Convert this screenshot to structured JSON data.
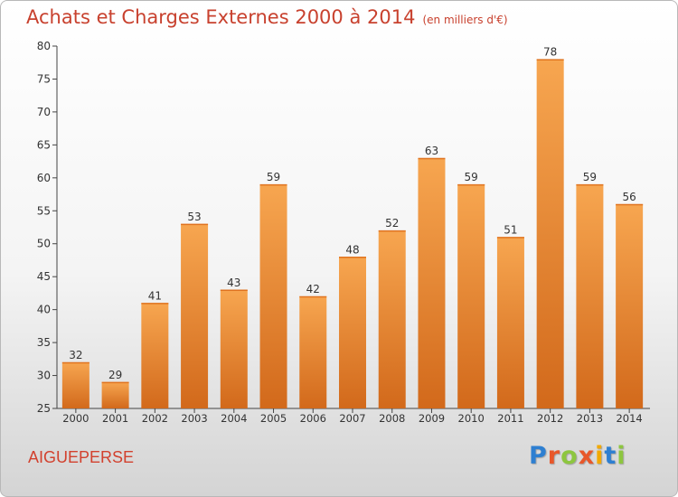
{
  "header": {
    "title": "Achats et Charges Externes 2000 à 2014",
    "unit": "(en milliers d'€)"
  },
  "location": "AIGUEPERSE",
  "brand": {
    "letters": [
      "P",
      "r",
      "o",
      "x",
      "i",
      "t",
      "i"
    ],
    "colors": [
      "#2e7fd1",
      "#e8572a",
      "#8dc63f",
      "#e8572a",
      "#f2a900",
      "#2e7fd1",
      "#8dc63f"
    ]
  },
  "colors": {
    "bar_top": "#f7a650",
    "bar_bottom": "#d2691b",
    "title": "#c8412e"
  },
  "chart_data": {
    "type": "bar",
    "categories": [
      "2000",
      "2001",
      "2002",
      "2003",
      "2004",
      "2005",
      "2006",
      "2007",
      "2008",
      "2009",
      "2010",
      "2011",
      "2012",
      "2013",
      "2014"
    ],
    "values": [
      32,
      29,
      41,
      53,
      43,
      59,
      42,
      48,
      52,
      63,
      59,
      51,
      78,
      59,
      56
    ],
    "ylim": [
      25,
      80
    ],
    "yticks": [
      25,
      30,
      35,
      40,
      45,
      50,
      55,
      60,
      65,
      70,
      75,
      80
    ],
    "grid": false,
    "xlabel": "",
    "ylabel": ""
  }
}
